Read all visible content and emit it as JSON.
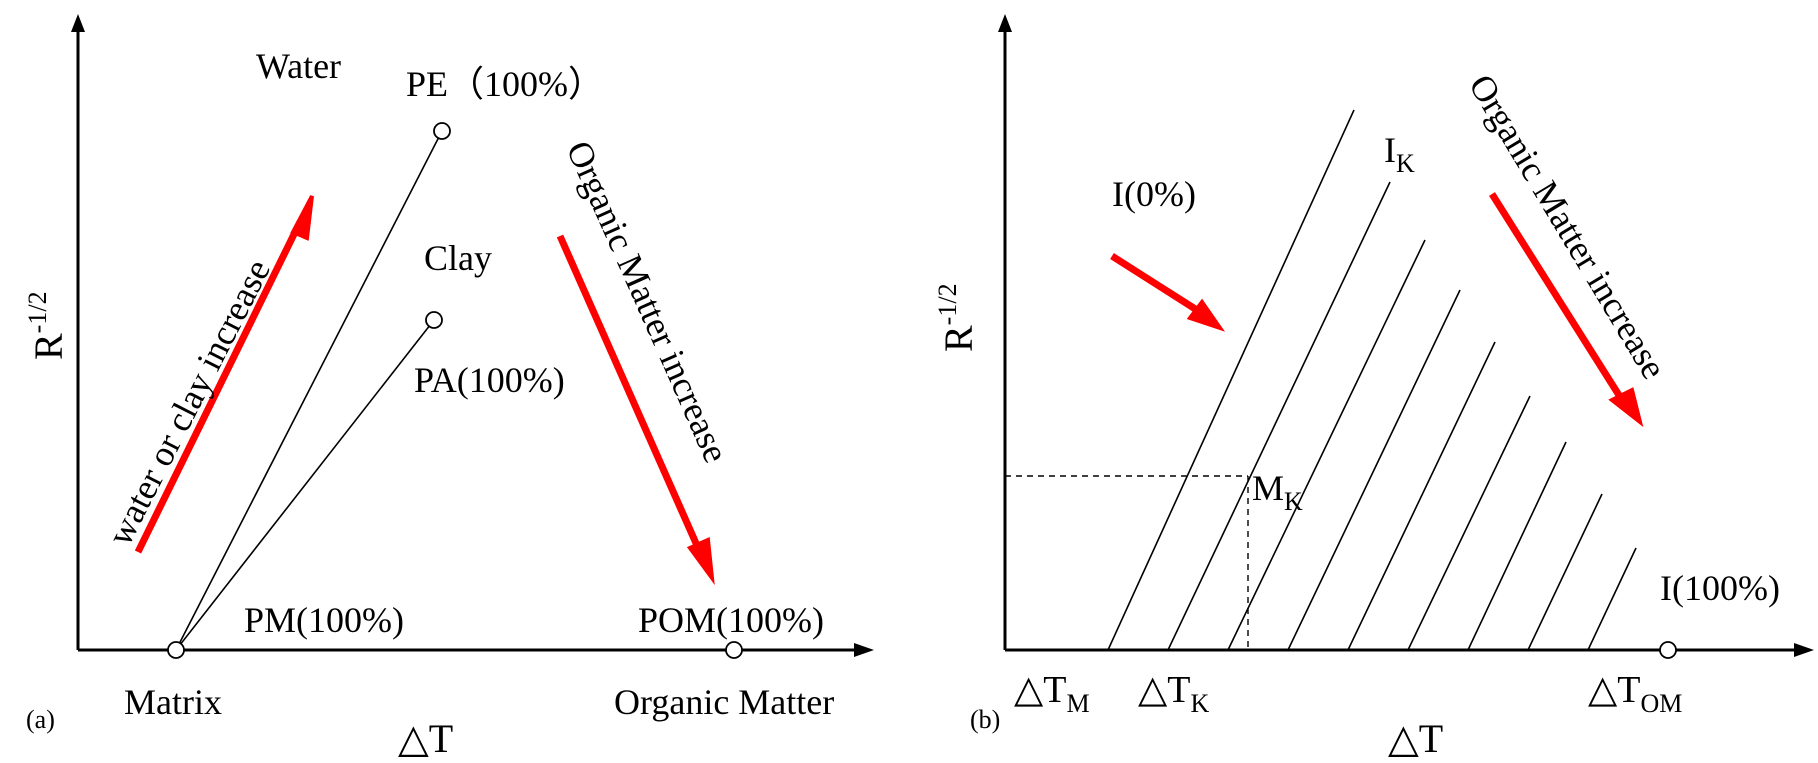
{
  "colors": {
    "arrow": "#ff0000",
    "ink": "#000000",
    "background": "#ffffff"
  },
  "panel_a": {
    "tag": "(a)",
    "ylabel_base": "R",
    "ylabel_exp": "-1/2",
    "xlabel": "△T",
    "water": "Water",
    "pe": "PE（100%）",
    "clay": "Clay",
    "pa": "PA(100%)",
    "pm": "PM(100%)",
    "pom": "POM(100%)",
    "matrix": "Matrix",
    "organic_matter": "Organic Matter",
    "water_clay_arrow": "water or clay increase",
    "om_arrow": "Organic Matter increase"
  },
  "panel_b": {
    "tag": "(b)",
    "ylabel_base": "R",
    "ylabel_exp": "-1/2",
    "xlabel": "△T",
    "i0": "I(0%)",
    "ik_main": "I",
    "ik_sub": "K",
    "mk_main": "M",
    "mk_sub": "K",
    "i100": "I(100%)",
    "dtm_main": "△T",
    "dtm_sub": "M",
    "dtk_main": "△T",
    "dtk_sub": "K",
    "dtom_main": "△T",
    "dtom_sub": "OM",
    "om_arrow": "Organic Matter increase"
  }
}
